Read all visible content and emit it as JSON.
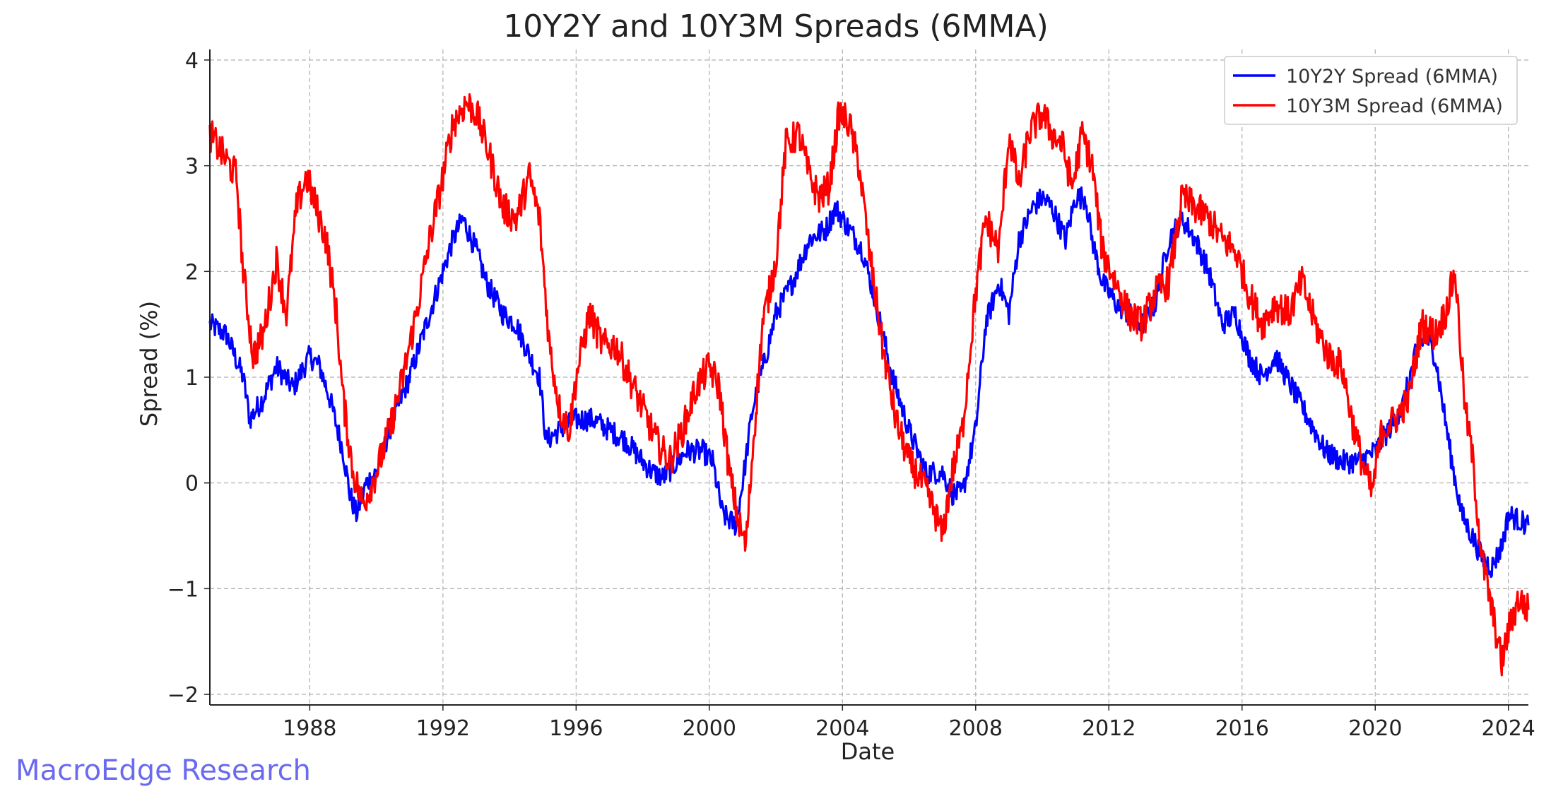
{
  "chart_data": {
    "type": "line",
    "title": "10Y2Y and 10Y3M Spreads (6MMA)",
    "xlabel": "Date",
    "ylabel": "Spread (%)",
    "xlim": [
      1985.0,
      2024.6
    ],
    "ylim": [
      -2.1,
      4.1
    ],
    "x_ticks": [
      1988,
      1992,
      1996,
      2000,
      2004,
      2008,
      2012,
      2016,
      2020,
      2024
    ],
    "y_ticks": [
      -2,
      -1,
      0,
      1,
      2,
      3,
      4
    ],
    "y_tick_labels": [
      "−2",
      "−1",
      "0",
      "1",
      "2",
      "3",
      "4"
    ],
    "grid": true,
    "legend_position": "top-right",
    "series": [
      {
        "name": "10Y2Y Spread (6MMA)",
        "color": "#0000ff",
        "x": [
          1985.0,
          1985.5,
          1986.0,
          1986.2,
          1986.6,
          1987.0,
          1987.5,
          1988.0,
          1988.3,
          1988.6,
          1989.0,
          1989.2,
          1989.4,
          1989.7,
          1990.0,
          1990.5,
          1991.0,
          1991.5,
          1992.0,
          1992.3,
          1992.6,
          1993.0,
          1993.3,
          1993.8,
          1994.2,
          1994.6,
          1994.9,
          1995.1,
          1995.5,
          1996.0,
          1996.5,
          1997.0,
          1997.5,
          1998.0,
          1998.3,
          1998.6,
          1998.9,
          1999.3,
          1999.8,
          2000.1,
          2000.4,
          2000.8,
          2001.0,
          2001.3,
          2001.7,
          2002.0,
          2002.5,
          2003.0,
          2003.5,
          2003.8,
          2004.2,
          2004.6,
          2005.0,
          2005.5,
          2006.0,
          2006.5,
          2007.0,
          2007.3,
          2007.6,
          2008.0,
          2008.3,
          2008.7,
          2009.0,
          2009.3,
          2009.7,
          2010.0,
          2010.3,
          2010.7,
          2011.0,
          2011.3,
          2011.5,
          2011.8,
          2012.2,
          2012.6,
          2013.0,
          2013.4,
          2013.8,
          2014.2,
          2014.6,
          2015.0,
          2015.4,
          2015.8,
          2016.2,
          2016.6,
          2017.0,
          2017.5,
          2018.0,
          2018.5,
          2019.0,
          2019.5,
          2020.0,
          2020.4,
          2020.8,
          2021.2,
          2021.5,
          2021.8,
          2022.0,
          2022.3,
          2022.6,
          2022.9,
          2023.2,
          2023.5,
          2023.8,
          2024.0,
          2024.3,
          2024.6
        ],
        "y": [
          1.5,
          1.4,
          1.0,
          0.6,
          0.8,
          1.1,
          0.9,
          1.2,
          1.1,
          0.8,
          0.3,
          -0.1,
          -0.3,
          0.0,
          0.1,
          0.6,
          1.0,
          1.5,
          2.0,
          2.3,
          2.5,
          2.2,
          1.9,
          1.6,
          1.5,
          1.2,
          1.0,
          0.4,
          0.5,
          0.6,
          0.6,
          0.5,
          0.4,
          0.2,
          0.1,
          0.05,
          0.15,
          0.3,
          0.3,
          0.2,
          -0.3,
          -0.4,
          0.0,
          0.7,
          1.2,
          1.6,
          1.9,
          2.3,
          2.4,
          2.6,
          2.4,
          2.2,
          1.7,
          1.0,
          0.5,
          0.1,
          0.1,
          -0.1,
          -0.1,
          0.5,
          1.5,
          1.9,
          1.6,
          2.3,
          2.6,
          2.7,
          2.6,
          2.3,
          2.7,
          2.7,
          2.3,
          1.9,
          1.7,
          1.6,
          1.5,
          1.7,
          2.3,
          2.5,
          2.3,
          2.0,
          1.5,
          1.6,
          1.2,
          1.0,
          1.2,
          0.9,
          0.6,
          0.3,
          0.2,
          0.2,
          0.3,
          0.5,
          0.7,
          1.2,
          1.4,
          1.2,
          0.8,
          0.2,
          -0.3,
          -0.5,
          -0.7,
          -0.8,
          -0.6,
          -0.3,
          -0.35,
          -0.4
        ]
      },
      {
        "name": "10Y3M Spread (6MMA)",
        "color": "#ff0000",
        "x": [
          1985.0,
          1985.4,
          1985.8,
          1986.0,
          1986.3,
          1986.6,
          1987.0,
          1987.3,
          1987.6,
          1987.9,
          1988.2,
          1988.5,
          1988.8,
          1989.0,
          1989.3,
          1989.6,
          1990.0,
          1990.4,
          1990.8,
          1991.2,
          1991.6,
          1992.0,
          1992.3,
          1992.7,
          1993.0,
          1993.4,
          1993.8,
          1994.2,
          1994.6,
          1994.9,
          1995.2,
          1995.5,
          1995.8,
          1996.0,
          1996.4,
          1996.8,
          1997.2,
          1997.6,
          1998.0,
          1998.4,
          1998.8,
          1999.2,
          1999.6,
          2000.0,
          2000.3,
          2000.6,
          2000.9,
          2001.1,
          2001.3,
          2001.6,
          2002.0,
          2002.3,
          2002.7,
          2003.0,
          2003.3,
          2003.6,
          2003.9,
          2004.2,
          2004.5,
          2004.8,
          2005.2,
          2005.6,
          2006.0,
          2006.4,
          2006.8,
          2007.0,
          2007.3,
          2007.6,
          2008.0,
          2008.3,
          2008.7,
          2009.0,
          2009.3,
          2009.6,
          2010.0,
          2010.3,
          2010.6,
          2010.9,
          2011.2,
          2011.5,
          2011.8,
          2012.2,
          2012.6,
          2013.0,
          2013.4,
          2013.8,
          2014.2,
          2014.6,
          2015.0,
          2015.4,
          2015.8,
          2016.2,
          2016.6,
          2017.0,
          2017.4,
          2017.8,
          2018.2,
          2018.6,
          2019.0,
          2019.3,
          2019.6,
          2019.9,
          2020.2,
          2020.6,
          2021.0,
          2021.4,
          2021.8,
          2022.1,
          2022.4,
          2022.7,
          2022.9,
          2023.2,
          2023.5,
          2023.8,
          2024.0,
          2024.3,
          2024.6
        ],
        "y": [
          3.3,
          3.1,
          2.9,
          2.0,
          1.2,
          1.4,
          2.1,
          1.6,
          2.6,
          2.9,
          2.6,
          2.3,
          1.6,
          0.8,
          0.1,
          -0.2,
          0.1,
          0.5,
          1.0,
          1.6,
          2.3,
          2.9,
          3.4,
          3.6,
          3.5,
          3.1,
          2.6,
          2.5,
          2.9,
          2.5,
          1.3,
          0.7,
          0.5,
          1.0,
          1.6,
          1.3,
          1.3,
          1.0,
          0.7,
          0.4,
          0.2,
          0.5,
          0.9,
          1.1,
          0.9,
          0.1,
          -0.4,
          -0.6,
          0.3,
          1.5,
          2.1,
          3.2,
          3.3,
          2.9,
          2.7,
          2.8,
          3.5,
          3.4,
          3.0,
          2.2,
          1.3,
          0.6,
          0.2,
          0.0,
          -0.3,
          -0.5,
          0.1,
          0.5,
          1.8,
          2.5,
          2.2,
          3.3,
          2.8,
          3.3,
          3.5,
          3.3,
          3.2,
          2.8,
          3.3,
          3.0,
          2.2,
          1.9,
          1.6,
          1.5,
          1.8,
          1.9,
          2.7,
          2.6,
          2.5,
          2.3,
          2.2,
          1.8,
          1.5,
          1.7,
          1.6,
          1.9,
          1.5,
          1.2,
          1.1,
          0.6,
          0.2,
          -0.1,
          0.5,
          0.6,
          0.8,
          1.5,
          1.4,
          1.6,
          2.0,
          0.7,
          0.3,
          -0.7,
          -1.2,
          -1.7,
          -1.4,
          -1.1,
          -1.2
        ]
      }
    ]
  },
  "watermark": "MacroEdge Research"
}
